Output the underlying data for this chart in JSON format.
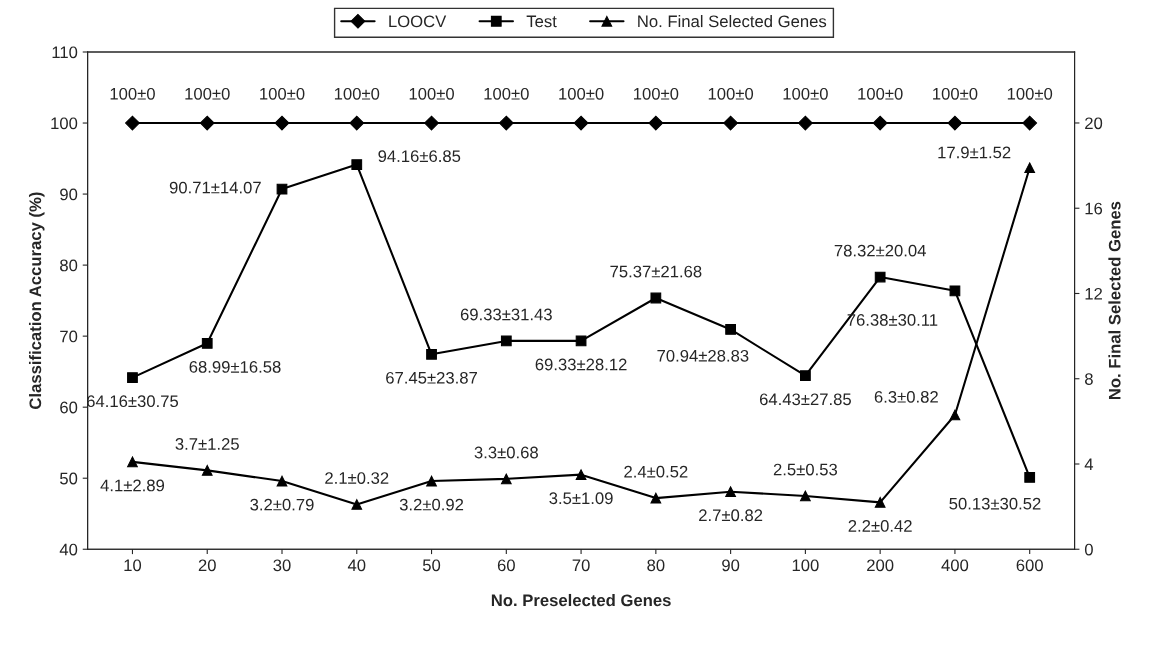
{
  "chart_data": {
    "type": "line",
    "xlabel": "No. Preselected Genes",
    "ylabel": "Classification Accuracy (%)",
    "y2label": "No. Final Selected Genes",
    "categories": [
      "10",
      "20",
      "30",
      "40",
      "50",
      "60",
      "70",
      "80",
      "90",
      "100",
      "200",
      "400",
      "600"
    ],
    "ylim": [
      40,
      110
    ],
    "yticks": [
      40,
      50,
      60,
      70,
      80,
      90,
      100,
      110
    ],
    "y2lim": [
      0,
      23.33
    ],
    "y2ticks": [
      0,
      4,
      8,
      12,
      16,
      20
    ],
    "legend": "top",
    "grid": false,
    "series": [
      {
        "name": "LOOCV",
        "color": "#000000",
        "marker": "diamond",
        "values": [
          100,
          100,
          100,
          100,
          100,
          100,
          100,
          100,
          100,
          100,
          100,
          100,
          100
        ],
        "value_labels": [
          "100±0",
          "100±0",
          "100±0",
          "100±0",
          "100±0",
          "100±0",
          "100±0",
          "100±0",
          "100±0",
          "100±0",
          "100±0",
          "100±0",
          "100±0"
        ]
      },
      {
        "name": "Test",
        "color": "#000000",
        "marker": "square",
        "values": [
          64.16,
          68.99,
          90.71,
          94.16,
          67.45,
          69.33,
          69.33,
          75.37,
          70.94,
          64.43,
          78.32,
          76.38,
          50.13
        ],
        "value_labels": [
          "64.16±30.75",
          "68.99±16.58",
          "90.71±14.07",
          "94.16±6.85",
          "67.45±23.87",
          "69.33±31.43",
          "69.33±28.12",
          "75.37±21.68",
          "70.94±28.83",
          "64.43±27.85",
          "78.32±20.04",
          "76.38±30.11",
          "50.13±30.52"
        ]
      },
      {
        "name": "No. Final Selected Genes",
        "color": "#000000",
        "marker": "triangle",
        "axis": "y2",
        "values": [
          4.1,
          3.7,
          3.2,
          2.1,
          3.2,
          3.3,
          3.5,
          2.4,
          2.7,
          2.5,
          2.2,
          6.3,
          17.9
        ],
        "value_labels": [
          "4.1±2.89",
          "3.7±1.25",
          "3.2±0.79",
          "2.1±0.32",
          "3.2±0.92",
          "3.3±0.68",
          "3.5±1.09",
          "2.4±0.52",
          "2.7±0.82",
          "2.5±0.53",
          "2.2±0.42",
          "6.3±0.82",
          "17.9±1.52"
        ]
      }
    ]
  }
}
